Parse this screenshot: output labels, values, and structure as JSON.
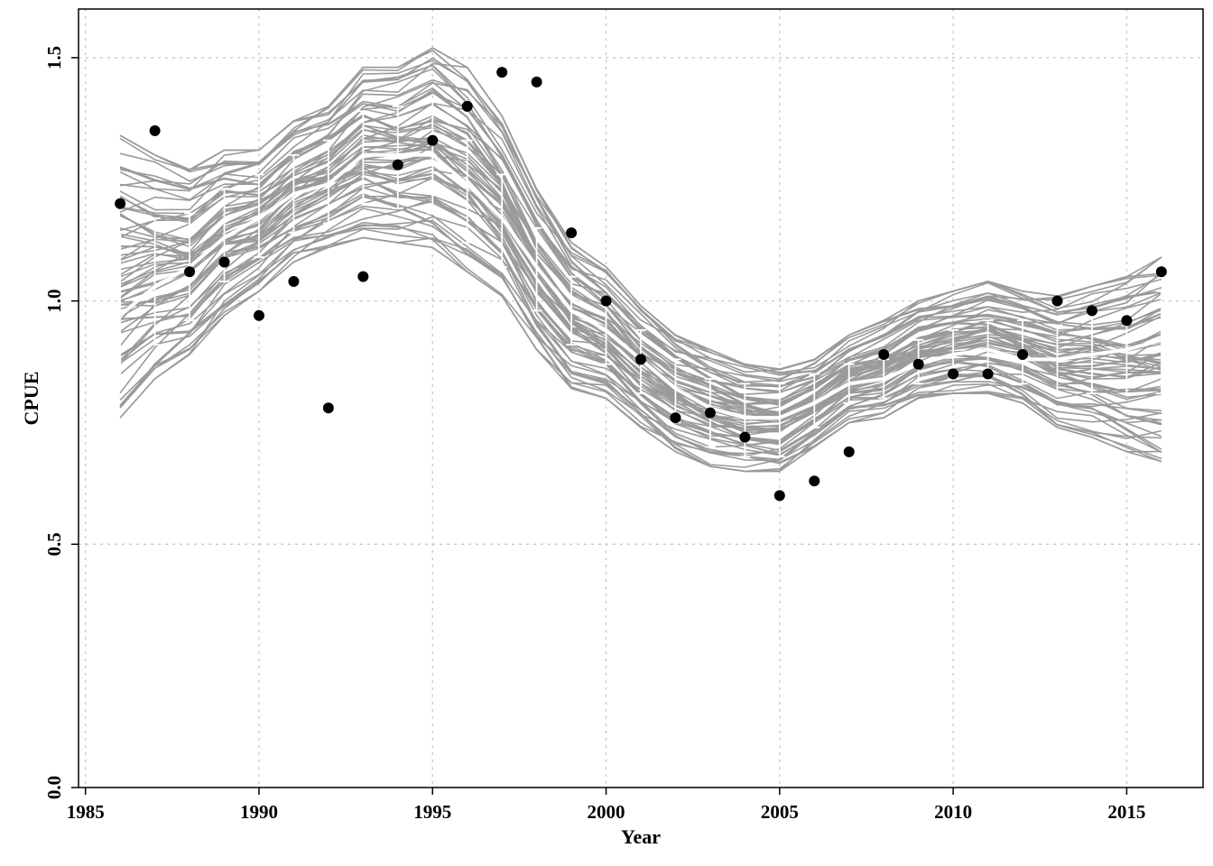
{
  "chart_data": {
    "type": "line",
    "xlabel": "Year",
    "ylabel": "CPUE",
    "xlim": [
      1984.8,
      2017.2
    ],
    "ylim": [
      0,
      1.6
    ],
    "x_ticks": [
      1985,
      1990,
      1995,
      2000,
      2005,
      2010,
      2015
    ],
    "y_ticks": [
      0.0,
      0.5,
      1.0,
      1.5
    ],
    "x_tick_labels": [
      "1985",
      "1990",
      "1995",
      "2000",
      "2005",
      "2010",
      "2015"
    ],
    "y_tick_labels": [
      "0.0",
      "0.5",
      "1.0",
      "1.5"
    ],
    "grid": true,
    "colors": {
      "simulations": "#9a9a9a",
      "median": "#ffffff",
      "observed": "#000000"
    },
    "years": [
      1986,
      1987,
      1988,
      1989,
      1990,
      1991,
      1992,
      1993,
      1994,
      1995,
      1996,
      1997,
      1998,
      1999,
      2000,
      2001,
      2002,
      2003,
      2004,
      2005,
      2006,
      2007,
      2008,
      2009,
      2010,
      2011,
      2012,
      2013,
      2014,
      2015,
      2016
    ],
    "median": [
      0.97,
      1.03,
      1.07,
      1.13,
      1.17,
      1.22,
      1.24,
      1.3,
      1.3,
      1.3,
      1.24,
      1.17,
      1.07,
      0.98,
      0.94,
      0.88,
      0.82,
      0.78,
      0.76,
      0.76,
      0.79,
      0.83,
      0.84,
      0.87,
      0.89,
      0.9,
      0.88,
      0.88,
      0.89,
      0.9,
      0.92
    ],
    "ci_lower": [
      0.84,
      0.91,
      0.96,
      1.04,
      1.09,
      1.14,
      1.16,
      1.2,
      1.19,
      1.18,
      1.12,
      1.07,
      0.98,
      0.91,
      0.87,
      0.81,
      0.75,
      0.7,
      0.68,
      0.68,
      0.74,
      0.79,
      0.8,
      0.83,
      0.84,
      0.85,
      0.83,
      0.81,
      0.81,
      0.81,
      0.81
    ],
    "ci_upper": [
      1.14,
      1.17,
      1.18,
      1.23,
      1.26,
      1.3,
      1.33,
      1.39,
      1.4,
      1.41,
      1.33,
      1.26,
      1.15,
      1.05,
      1.0,
      0.94,
      0.88,
      0.84,
      0.83,
      0.83,
      0.85,
      0.87,
      0.88,
      0.92,
      0.94,
      0.96,
      0.96,
      0.95,
      0.97,
      0.98,
      1.02
    ],
    "band_lower": [
      0.76,
      0.84,
      0.89,
      0.97,
      1.02,
      1.08,
      1.11,
      1.13,
      1.12,
      1.11,
      1.06,
      1.01,
      0.9,
      0.82,
      0.8,
      0.74,
      0.69,
      0.66,
      0.65,
      0.65,
      0.7,
      0.75,
      0.76,
      0.8,
      0.81,
      0.81,
      0.79,
      0.74,
      0.72,
      0.69,
      0.67
    ],
    "band_upper": [
      1.34,
      1.3,
      1.27,
      1.31,
      1.31,
      1.37,
      1.4,
      1.48,
      1.48,
      1.52,
      1.48,
      1.38,
      1.23,
      1.12,
      1.07,
      0.99,
      0.93,
      0.9,
      0.87,
      0.86,
      0.88,
      0.93,
      0.96,
      1.0,
      1.02,
      1.04,
      1.02,
      1.01,
      1.03,
      1.05,
      1.09
    ],
    "observed": [
      1.2,
      1.35,
      1.06,
      1.08,
      0.97,
      1.04,
      0.78,
      1.05,
      1.28,
      1.33,
      1.4,
      1.47,
      1.45,
      1.14,
      1.0,
      0.88,
      0.76,
      0.77,
      0.72,
      0.6,
      0.63,
      0.69,
      0.89,
      0.87,
      0.85,
      0.85,
      0.89,
      1.0,
      0.98,
      0.96,
      1.06
    ]
  }
}
